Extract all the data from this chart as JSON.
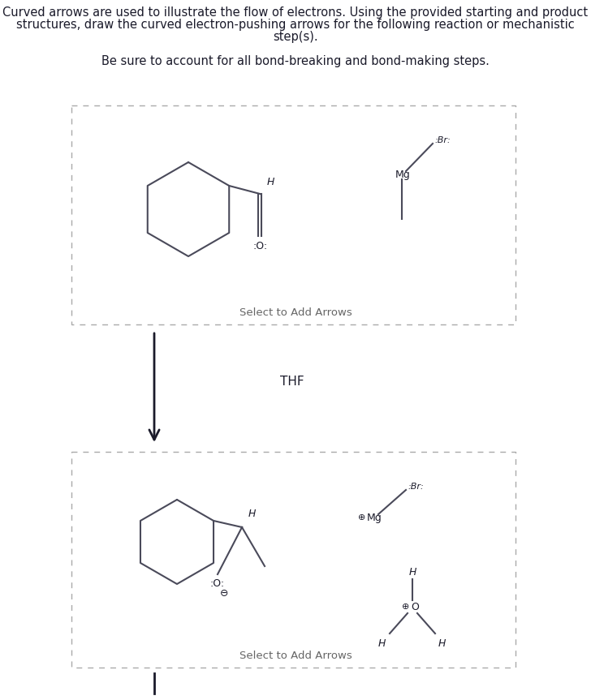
{
  "title_line1": "Curved arrows are used to illustrate the flow of electrons. Using the provided starting and product",
  "title_line2": "structures, draw the curved electron-pushing arrows for the following reaction or mechanistic",
  "title_line3": "step(s).",
  "subtitle": "Be sure to account for all bond-breaking and bond-making steps.",
  "thf_label": "THF",
  "select_arrows": "Select to Add Arrows",
  "bg_color": "#ffffff",
  "line_color": "#4a4a5a",
  "text_color": "#1a1a2a",
  "box_dash_color": "#aaaaaa",
  "font_size_title": 10.5,
  "font_size_sub": 10.5,
  "font_size_label": 9.5,
  "font_size_small": 8.5
}
